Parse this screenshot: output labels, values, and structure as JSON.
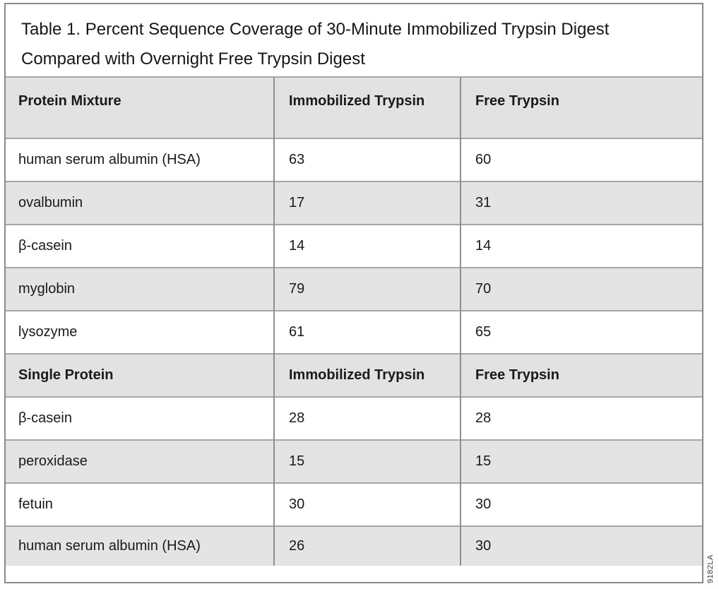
{
  "title_lines": [
    "Table 1. Percent Sequence Coverage of 30-Minute Immobilized Trypsin Digest",
    "Compared with Overnight Free Trypsin Digest"
  ],
  "figure_code": "9182LA",
  "colors": {
    "header_bg": "#e2e2e2",
    "stripe_bg": "#e4e4e4",
    "row_border": "#a6a6a6",
    "col_border": "#8f8f8f",
    "frame_border": "#8a8a8a"
  },
  "table": {
    "sections": [
      {
        "header": [
          "Protein Mixture",
          "Immobilized Trypsin",
          "Free Trypsin"
        ],
        "rows": [
          [
            "human serum albumin (HSA)",
            "63",
            "60"
          ],
          [
            "ovalbumin",
            "17",
            "31"
          ],
          [
            "β-casein",
            "14",
            "14"
          ],
          [
            "myglobin",
            "79",
            "70"
          ],
          [
            "lysozyme",
            "61",
            "65"
          ]
        ]
      },
      {
        "header": [
          "Single Protein",
          "Immobilized Trypsin",
          "Free Trypsin"
        ],
        "rows": [
          [
            "β-casein",
            "28",
            "28"
          ],
          [
            "peroxidase",
            "15",
            "15"
          ],
          [
            "fetuin",
            "30",
            "30"
          ],
          [
            "human serum albumin (HSA)",
            "26",
            "30"
          ]
        ]
      }
    ]
  },
  "chart_data": {
    "type": "table",
    "title": "Table 1. Percent Sequence Coverage of 30-Minute Immobilized Trypsin Digest Compared with Overnight Free Trypsin Digest",
    "columns": [
      "Protein",
      "Immobilized Trypsin",
      "Free Trypsin"
    ],
    "sections": [
      {
        "name": "Protein Mixture",
        "rows": [
          {
            "protein": "human serum albumin (HSA)",
            "immobilized_trypsin": 63,
            "free_trypsin": 60
          },
          {
            "protein": "ovalbumin",
            "immobilized_trypsin": 17,
            "free_trypsin": 31
          },
          {
            "protein": "β-casein",
            "immobilized_trypsin": 14,
            "free_trypsin": 14
          },
          {
            "protein": "myglobin",
            "immobilized_trypsin": 79,
            "free_trypsin": 70
          },
          {
            "protein": "lysozyme",
            "immobilized_trypsin": 61,
            "free_trypsin": 65
          }
        ]
      },
      {
        "name": "Single Protein",
        "rows": [
          {
            "protein": "β-casein",
            "immobilized_trypsin": 28,
            "free_trypsin": 28
          },
          {
            "protein": "peroxidase",
            "immobilized_trypsin": 15,
            "free_trypsin": 15
          },
          {
            "protein": "fetuin",
            "immobilized_trypsin": 30,
            "free_trypsin": 30
          },
          {
            "protein": "human serum albumin (HSA)",
            "immobilized_trypsin": 26,
            "free_trypsin": 30
          }
        ]
      }
    ]
  }
}
